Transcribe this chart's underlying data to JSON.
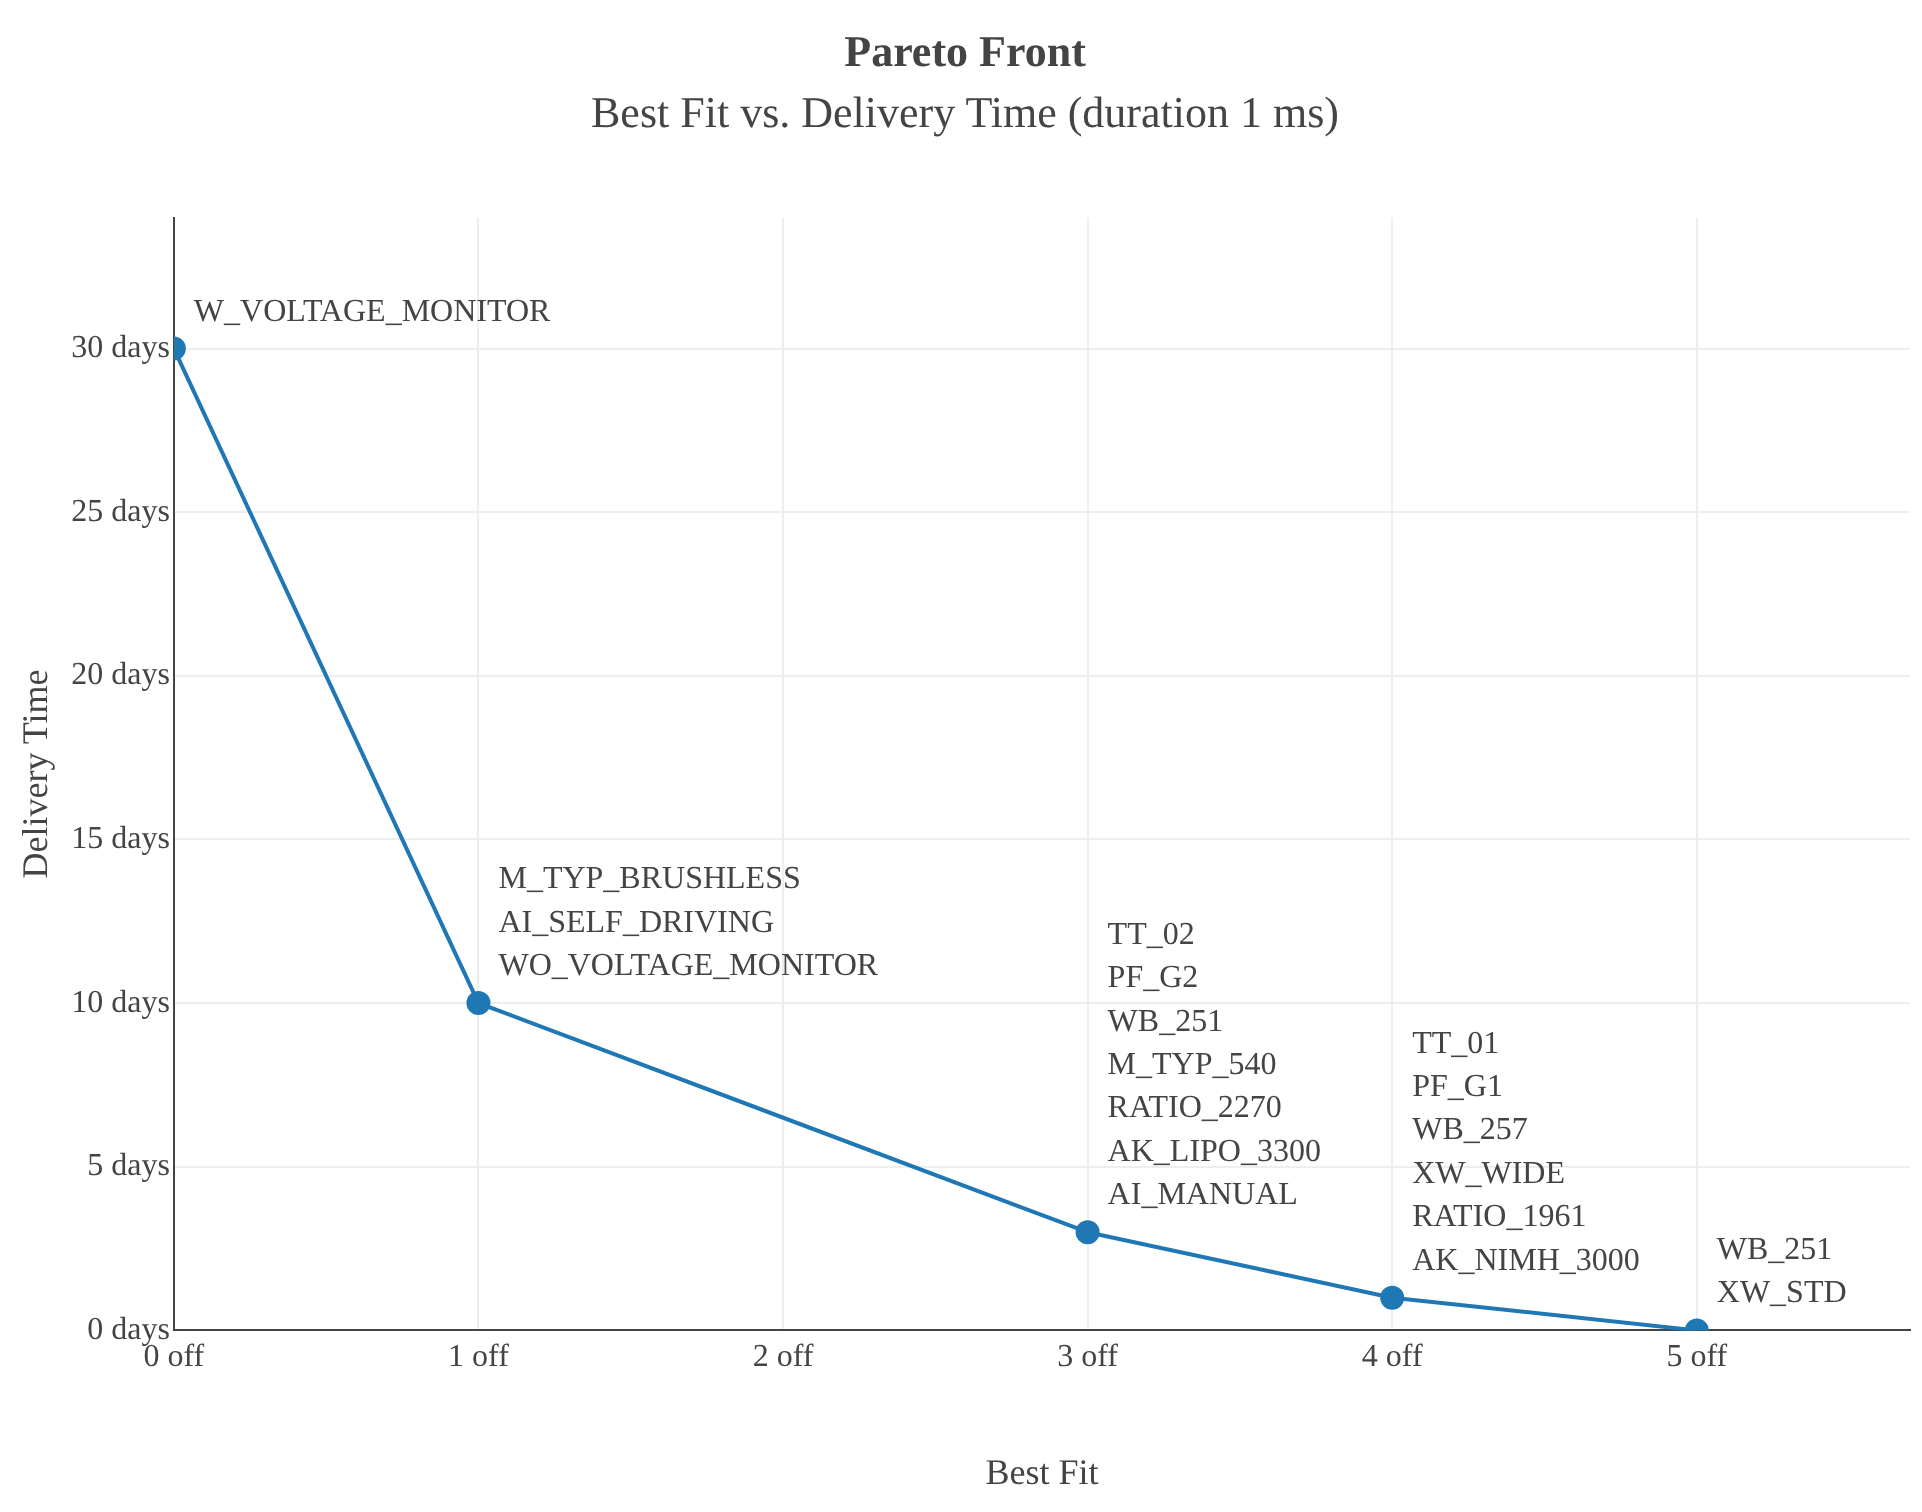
{
  "chart_data": {
    "type": "line",
    "title": "Pareto Front",
    "subtitle": "Best Fit vs. Delivery Time (duration 1 ms)",
    "xlabel": "Best Fit",
    "ylabel": "Delivery Time",
    "x": [
      0,
      1,
      3,
      4,
      5
    ],
    "series": [
      {
        "color": "#1f77b4",
        "values": [
          30,
          10,
          3,
          1,
          0
        ]
      }
    ],
    "xlim": [
      0,
      5.7
    ],
    "ylim": [
      0,
      34
    ],
    "xticks": [
      {
        "value": 0,
        "label": "0 off"
      },
      {
        "value": 1,
        "label": "1 off"
      },
      {
        "value": 2,
        "label": "2 off"
      },
      {
        "value": 3,
        "label": "3 off"
      },
      {
        "value": 4,
        "label": "4 off"
      },
      {
        "value": 5,
        "label": "5 off"
      }
    ],
    "yticks": [
      {
        "value": 0,
        "label": "0 days"
      },
      {
        "value": 5,
        "label": "5 days"
      },
      {
        "value": 10,
        "label": "10 days"
      },
      {
        "value": 15,
        "label": "15 days"
      },
      {
        "value": 20,
        "label": "20 days"
      },
      {
        "value": 25,
        "label": "25 days"
      },
      {
        "value": 30,
        "label": "30 days"
      }
    ],
    "grid": true,
    "marker": "circle",
    "line_style": "solid",
    "annotations": [
      {
        "text": "W_VOLTAGE_MONITOR",
        "x": 0,
        "y": 30
      },
      {
        "text": "M_TYP_BRUSHLESS\nAI_SELF_DRIVING\nWO_VOLTAGE_MONITOR",
        "x": 1,
        "y": 10
      },
      {
        "text": "TT_02\nPF_G2\nWB_251\nM_TYP_540\nRATIO_2270\nAK_LIPO_3300\nAI_MANUAL",
        "x": 3,
        "y": 3
      },
      {
        "text": "TT_01\nPF_G1\nWB_257\nXW_WIDE\nRATIO_1961\nAK_NIMH_3000",
        "x": 4,
        "y": 1
      },
      {
        "text": "WB_251\nXW_STD",
        "x": 5,
        "y": 0
      }
    ]
  }
}
